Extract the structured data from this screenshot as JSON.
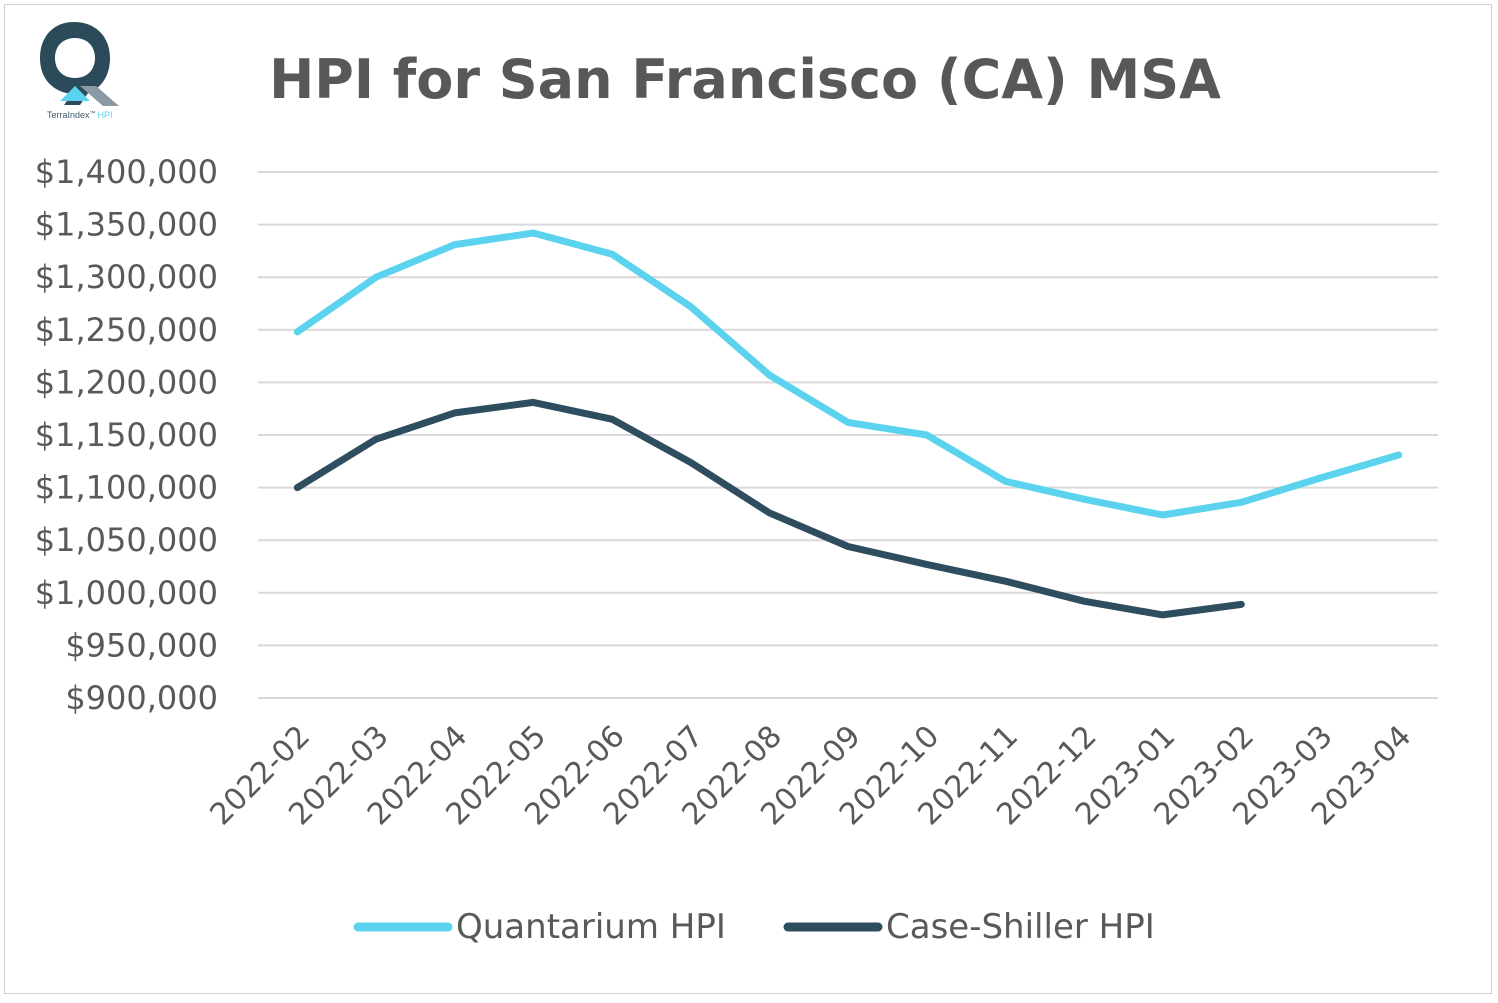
{
  "logo": {
    "name": "TerraIndex",
    "tm": "™",
    "suffix": "HPI",
    "colors": {
      "dark": "#2b4a5a",
      "accent": "#5cd3ee",
      "gray": "#8a9aa4"
    }
  },
  "chart_data": {
    "type": "line",
    "title": "HPI for San Francisco (CA) MSA",
    "xlabel": "",
    "ylabel": "",
    "categories": [
      "2022-02",
      "2022-03",
      "2022-04",
      "2022-05",
      "2022-06",
      "2022-07",
      "2022-08",
      "2022-09",
      "2022-10",
      "2022-11",
      "2022-12",
      "2023-01",
      "2023-02",
      "2023-03",
      "2023-04"
    ],
    "ylim": [
      900000,
      1400000
    ],
    "yticks": [
      900000,
      950000,
      1000000,
      1050000,
      1100000,
      1150000,
      1200000,
      1250000,
      1300000,
      1350000,
      1400000
    ],
    "ytick_labels": [
      "$900,000",
      "$950,000",
      "$1,000,000",
      "$1,050,000",
      "$1,100,000",
      "$1,150,000",
      "$1,200,000",
      "$1,250,000",
      "$1,300,000",
      "$1,350,000",
      "$1,400,000"
    ],
    "grid": true,
    "legend": "bottom",
    "series": [
      {
        "name": "Quantarium HPI",
        "color": "#5cd3ee",
        "values": [
          1248000,
          1300000,
          1331000,
          1342000,
          1322000,
          1272000,
          1207000,
          1162000,
          1150000,
          1106000,
          1089000,
          1074000,
          1086000,
          1109000,
          1131000
        ]
      },
      {
        "name": "Case-Shiller HPI",
        "color": "#2e4d5e",
        "values": [
          1100000,
          1146000,
          1171000,
          1181000,
          1165000,
          1124000,
          1076000,
          1044000,
          1027000,
          1011000,
          992000,
          979000,
          989000,
          null,
          null
        ]
      }
    ]
  }
}
